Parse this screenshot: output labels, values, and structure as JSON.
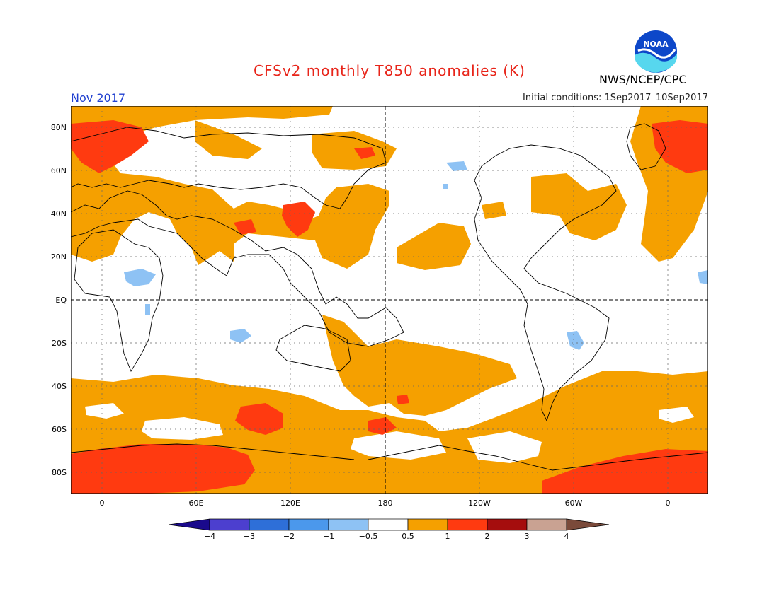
{
  "title": "CFSv2 monthly T850 anomalies (K)",
  "agency": "NWS/NCEP/CPC",
  "logo_text": "NOAA",
  "valid_month": "Nov 2017",
  "initial_conditions": "Initial conditions: 1Sep2017–10Sep2017",
  "lat_labels": [
    "80N",
    "60N",
    "40N",
    "20N",
    "EQ",
    "20S",
    "40S",
    "60S",
    "80S"
  ],
  "lon_labels": [
    "0",
    "60E",
    "120E",
    "180",
    "120W",
    "60W",
    "0"
  ],
  "colorbar": {
    "labels": [
      "−4",
      "−3",
      "−2",
      "−1",
      "−0.5",
      "0.5",
      "1",
      "2",
      "3",
      "4"
    ],
    "colors": [
      "#1a0a8c",
      "#4c3fcf",
      "#2e6fd8",
      "#4b98ec",
      "#8ec2f4",
      "#ffffff",
      "#f5a000",
      "#ff3a10",
      "#a50d0d",
      "#c9a292",
      "#7a4a3a"
    ]
  },
  "colors": {
    "orange": "#f5a000",
    "red": "#ff3a10",
    "lightblue": "#8ec2f4",
    "title": "#e8251a",
    "month": "#2040d0"
  }
}
